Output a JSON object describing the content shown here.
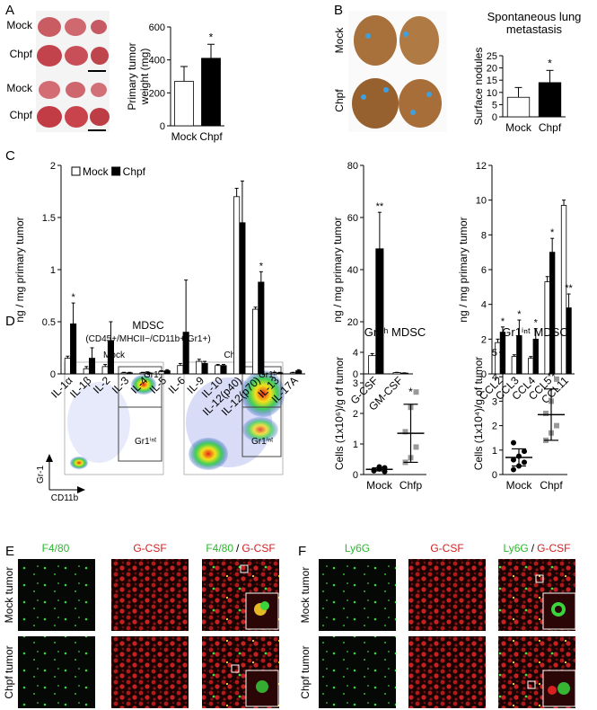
{
  "panel_letters": [
    "A",
    "B",
    "C",
    "D",
    "E",
    "F"
  ],
  "panel_a": {
    "photo_labels": [
      "Mock",
      "Chpf",
      "Mock",
      "Chpf"
    ]
  },
  "panel_b": {
    "photo_labels": [
      "Mock",
      "Chpf"
    ]
  },
  "panel_d": {
    "title": "MDSC",
    "subtitle": "(CD45+/MHCII−/CD11b+/Gr1+)",
    "plots": [
      "Mock",
      "Chpf"
    ],
    "gates": [
      "Gr1ʰ",
      "Gr1ⁱⁿᵗ"
    ],
    "x_axis": "CD11b",
    "y_axis": "Gr-1"
  },
  "panel_e": {
    "columns": [
      "F4/80",
      "G-CSF"
    ],
    "separator": "/",
    "rows": [
      "Mock tumor",
      "Chpf tumor"
    ]
  },
  "panel_f": {
    "columns": [
      "Ly6G",
      "G-CSF"
    ],
    "separator": "/",
    "rows": [
      "Mock tumor",
      "Chpf tumor"
    ]
  },
  "chart_data": [
    {
      "type": "bar",
      "ylabel": [
        "Primary tumor",
        "weight (mg)"
      ],
      "categories": [
        "Mock",
        "Chpf"
      ],
      "values": [
        270,
        410
      ],
      "errors": [
        90,
        85
      ],
      "colors": [
        "#ffffff",
        "#000000"
      ],
      "annotations": [
        null,
        "*"
      ],
      "ylim": [
        0,
        600
      ],
      "yticks": [
        0,
        200,
        400,
        600
      ]
    },
    {
      "type": "bar",
      "title": [
        "Spontaneous lung",
        "metastasis"
      ],
      "ylabel": [
        "Surface nodules"
      ],
      "categories": [
        "Mock",
        "Chpf"
      ],
      "values": [
        8,
        14
      ],
      "errors": [
        4,
        5
      ],
      "colors": [
        "#ffffff",
        "#000000"
      ],
      "annotations": [
        null,
        "*"
      ],
      "ylim": [
        0,
        25
      ],
      "yticks": [
        0,
        5,
        10,
        15,
        20,
        25
      ]
    },
    {
      "type": "grouped_bar",
      "ylabel": [
        "ng / mg primary tumor"
      ],
      "legend": "top-left",
      "categories": [
        "IL-1α",
        "IL-1β",
        "IL-2",
        "IL-3",
        "IL-4",
        "IL-5",
        "IL-6",
        "IL-9",
        "IL-10",
        "IL-12(p40)",
        "IL-12(p70)",
        "IL-13",
        "IL-17A"
      ],
      "series": [
        {
          "name": "Mock",
          "color": "#ffffff",
          "values": [
            0.15,
            0.05,
            0.07,
            0.01,
            0.01,
            0.02,
            0.08,
            0.12,
            0.08,
            1.7,
            0.62,
            0.01,
            0.01
          ],
          "errors": [
            0.02,
            0.02,
            0.02,
            0.005,
            0.005,
            0.01,
            0.02,
            0.02,
            0.01,
            0.08,
            0.02,
            0.005,
            0.005
          ]
        },
        {
          "name": "Chpf",
          "color": "#000000",
          "values": [
            0.48,
            0.15,
            0.32,
            0.01,
            0.01,
            0.03,
            0.4,
            0.1,
            0.08,
            1.45,
            0.88,
            0.01,
            0.03
          ],
          "errors": [
            0.2,
            0.1,
            0.18,
            0.005,
            0.005,
            0.01,
            0.5,
            0.02,
            0.01,
            0.4,
            0.1,
            0.005,
            0.01
          ],
          "annotations": [
            "*",
            null,
            null,
            null,
            null,
            null,
            null,
            null,
            null,
            null,
            "*",
            null,
            null
          ]
        }
      ],
      "ylim": [
        0,
        2
      ],
      "yticks": [
        0,
        0.5,
        1,
        1.5,
        2
      ]
    },
    {
      "type": "grouped_bar",
      "ylabel": [
        "ng / mg primary tumor"
      ],
      "categories": [
        "G-CSF",
        "GM-CSF"
      ],
      "series": [
        {
          "color": "#ffffff",
          "values": [
            7,
            0.5
          ],
          "errors": [
            0.8,
            0.1
          ]
        },
        {
          "color": "#000000",
          "values": [
            48,
            0.3
          ],
          "errors": [
            14,
            0.1
          ],
          "annotations": [
            "**",
            null
          ]
        }
      ],
      "ylim": [
        0,
        80
      ],
      "yticks": [
        0,
        20,
        40,
        60,
        80
      ]
    },
    {
      "type": "grouped_bar",
      "ylabel": [
        "ng / mg primary tumor"
      ],
      "categories": [
        "CCL2",
        "CCL3",
        "CCL4",
        "CCL5",
        "CCL11"
      ],
      "series": [
        {
          "color": "#ffffff",
          "values": [
            1.8,
            1.0,
            0.9,
            5.3,
            9.7
          ],
          "errors": [
            0.2,
            0.1,
            0.1,
            0.3,
            0.3
          ]
        },
        {
          "color": "#000000",
          "values": [
            2.4,
            2.2,
            2.0,
            7.0,
            3.8
          ],
          "errors": [
            0.3,
            0.9,
            0.6,
            0.8,
            0.8
          ],
          "annotations": [
            "*",
            "*",
            "*",
            "*",
            "**"
          ]
        }
      ],
      "ylim": [
        0,
        12
      ],
      "yticks": [
        0,
        2,
        4,
        6,
        8,
        10,
        12
      ]
    },
    {
      "type": "strip",
      "title": [
        "Gr1ʰ MDSC"
      ],
      "ylabel": [
        "Cells (1x10⁶)/g of tumor"
      ],
      "categories": [
        "Mock",
        "Chfp"
      ],
      "series": [
        {
          "color": "#000000",
          "marker": "circle",
          "values": [
            0.12,
            0.18,
            0.22,
            0.15,
            0.25,
            0.1
          ],
          "mean": 0.17,
          "error": 0.05
        },
        {
          "color": "#999999",
          "marker": "square",
          "values": [
            0.4,
            0.55,
            0.9,
            1.4,
            2.2,
            2.7
          ],
          "mean": 1.35,
          "error": 0.95,
          "annotation": "*"
        }
      ],
      "ylim": [
        0,
        4
      ],
      "yticks": [
        0,
        1,
        2,
        3,
        4
      ]
    },
    {
      "type": "strip",
      "title": [
        "Gr1ⁱⁿᵗ MDSC"
      ],
      "ylabel": [
        "Cells (1x10⁴)/g of tumor"
      ],
      "categories": [
        "Mock",
        "Chpf"
      ],
      "series": [
        {
          "color": "#000000",
          "marker": "circle",
          "values": [
            0.2,
            0.35,
            0.5,
            0.6,
            0.75,
            0.95,
            1.3
          ],
          "mean": 0.7,
          "error": 0.35
        },
        {
          "color": "#999999",
          "marker": "square",
          "values": [
            1.4,
            1.7,
            2.0,
            2.5,
            3.0,
            3.9
          ],
          "mean": 2.45,
          "error": 1.05,
          "annotation": "**"
        }
      ],
      "ylim": [
        0,
        5
      ],
      "yticks": [
        0,
        1,
        2,
        3,
        4,
        5
      ]
    }
  ]
}
